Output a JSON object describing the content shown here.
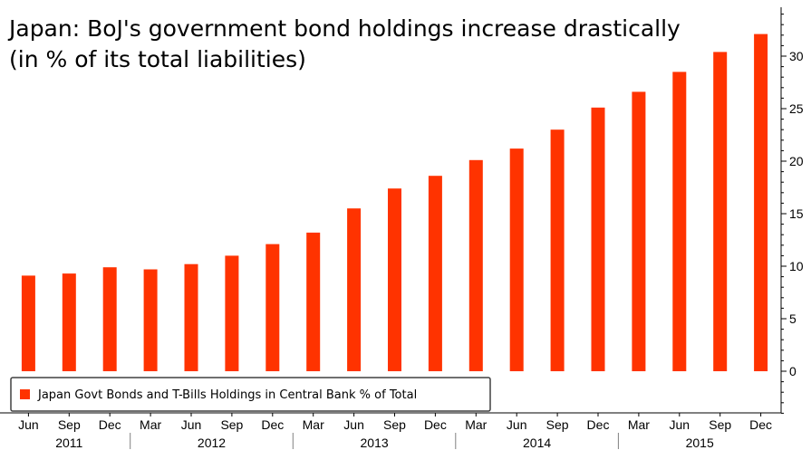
{
  "title_line1": "Japan: BoJ's government bond holdings increase drastically",
  "title_line2": "(in % of its total liabilities)",
  "chart_data": {
    "type": "bar",
    "categories": [
      "Jun 2011",
      "Sep 2011",
      "Dec 2011",
      "Mar 2012",
      "Jun 2012",
      "Sep 2012",
      "Dec 2012",
      "Mar 2013",
      "Jun 2013",
      "Sep 2013",
      "Dec 2013",
      "Mar 2014",
      "Jun 2014",
      "Sep 2014",
      "Dec 2014",
      "Mar 2015",
      "Jun 2015",
      "Sep 2015",
      "Dec 2015"
    ],
    "x_tick_labels": [
      "Jun",
      "Sep",
      "Dec",
      "Mar",
      "Jun",
      "Sep",
      "Dec",
      "Mar",
      "Jun",
      "Sep",
      "Dec",
      "Mar",
      "Jun",
      "Sep",
      "Dec",
      "Mar",
      "Jun",
      "Sep",
      "Dec"
    ],
    "year_labels": [
      {
        "label": "2011",
        "first_index": 0,
        "last_index": 2
      },
      {
        "label": "2012",
        "first_index": 3,
        "last_index": 6
      },
      {
        "label": "2013",
        "first_index": 7,
        "last_index": 10
      },
      {
        "label": "2014",
        "first_index": 11,
        "last_index": 14
      },
      {
        "label": "2015",
        "first_index": 15,
        "last_index": 18
      }
    ],
    "series": [
      {
        "name": "Japan Govt Bonds and T-Bills Holdings in Central Bank % of Total",
        "color": "#ff3300",
        "values": [
          9.1,
          9.3,
          9.9,
          9.7,
          10.2,
          11.0,
          12.1,
          13.2,
          15.5,
          17.4,
          18.6,
          20.1,
          21.2,
          23.0,
          25.1,
          26.6,
          28.5,
          30.4,
          32.1
        ]
      }
    ],
    "y_ticks": [
      0,
      5,
      10,
      15,
      20,
      25,
      30
    ],
    "ylim": [
      -4,
      34.5
    ],
    "y_axis_side": "right",
    "legend_position": "bottom-left",
    "grid": false
  }
}
